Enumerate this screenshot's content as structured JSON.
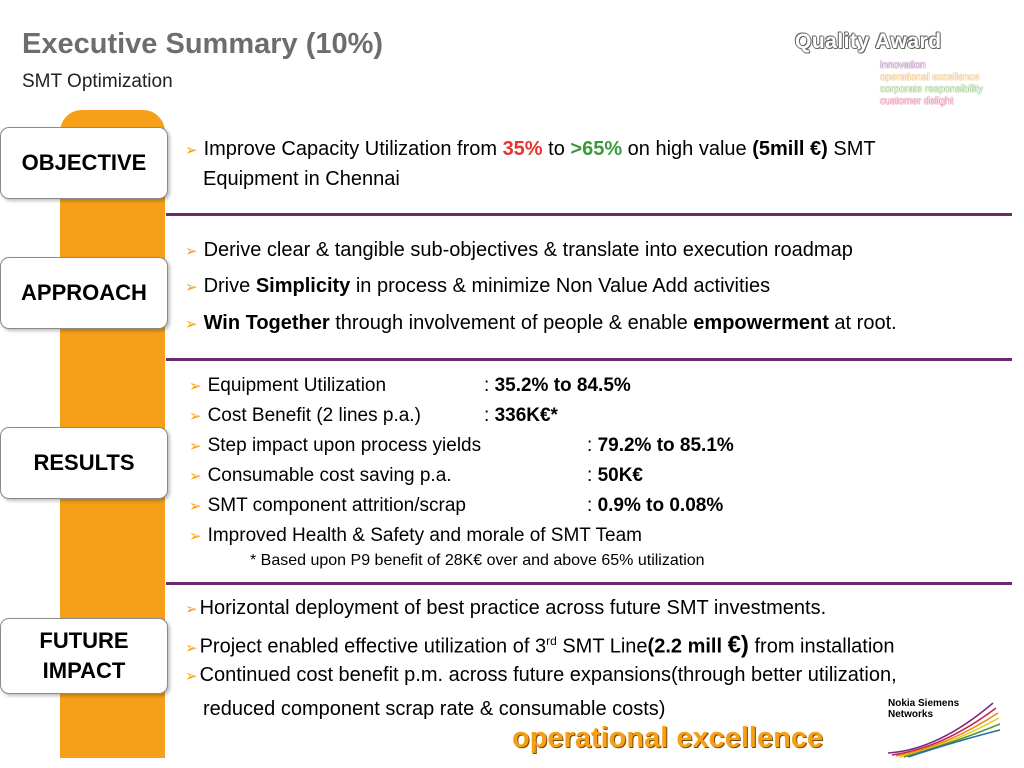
{
  "header": {
    "title": "Executive Summary (10%)",
    "subtitle": "SMT Optimization"
  },
  "quality_award": {
    "title": "Quality Award",
    "items": [
      "innovation",
      "operational excellence",
      "corporate responsibility",
      "customer delight"
    ]
  },
  "sections": {
    "objective": {
      "label": "OBJECTIVE",
      "line1_a": "Improve Capacity Utilization from ",
      "line1_from": "35%",
      "line1_b": " to ",
      "line1_to": ">65%",
      "line1_c": " on high value ",
      "line1_value": "(5mill €)",
      "line1_d": " SMT",
      "line2": "Equipment in Chennai"
    },
    "approach": {
      "label": "APPROACH",
      "item1": "Derive clear & tangible sub-objectives & translate into execution roadmap",
      "item2_a": "Drive ",
      "item2_b": "Simplicity",
      "item2_c": " in process & minimize Non Value Add activities",
      "item3_a": "Win Together",
      "item3_b": " through involvement of people & enable ",
      "item3_c": "empowerment",
      "item3_d": " at root."
    },
    "results": {
      "label": "RESULTS",
      "items": [
        {
          "label": "Equipment Utilization",
          "value": "35.2%  to 84.5%"
        },
        {
          "label": "Cost Benefit (2 lines p.a.)",
          "value": "336K€*"
        },
        {
          "label": "Step impact upon process yields",
          "value": "79.2%  to 85.1%"
        },
        {
          "label": "Consumable cost saving p.a.",
          "value": "50K€"
        },
        {
          "label": "SMT component attrition/scrap",
          "value": "0.9% to 0.08%"
        },
        {
          "label": "Improved Health & Safety and morale of SMT Team",
          "value": ""
        }
      ],
      "separator": ": ",
      "note": "* Based upon P9 benefit of 28K€ over and above 65% utilization"
    },
    "future": {
      "label_line1": "FUTURE",
      "label_line2": "IMPACT",
      "item1": "Horizontal deployment of best practice across future SMT investments.",
      "item2_a": "Project enabled effective utilization of 3",
      "item2_sup": "rd",
      "item2_b": " SMT Line",
      "item2_c": "(2.2 mill ",
      "item2_euro": "€)",
      "item2_d": " from installation",
      "item3": "Continued cost benefit p.m. across future expansions(through better utilization,",
      "item3_cont": "reduced component scrap rate & consumable costs)"
    }
  },
  "footer": {
    "tagline": "operational excellence",
    "logo_line1": "Nokia Siemens",
    "logo_line2": "Networks"
  },
  "colors": {
    "accent_orange": "#f5a018",
    "divider_purple": "#6b2a6e",
    "red": "#e8322b",
    "green": "#3a9a3a"
  }
}
